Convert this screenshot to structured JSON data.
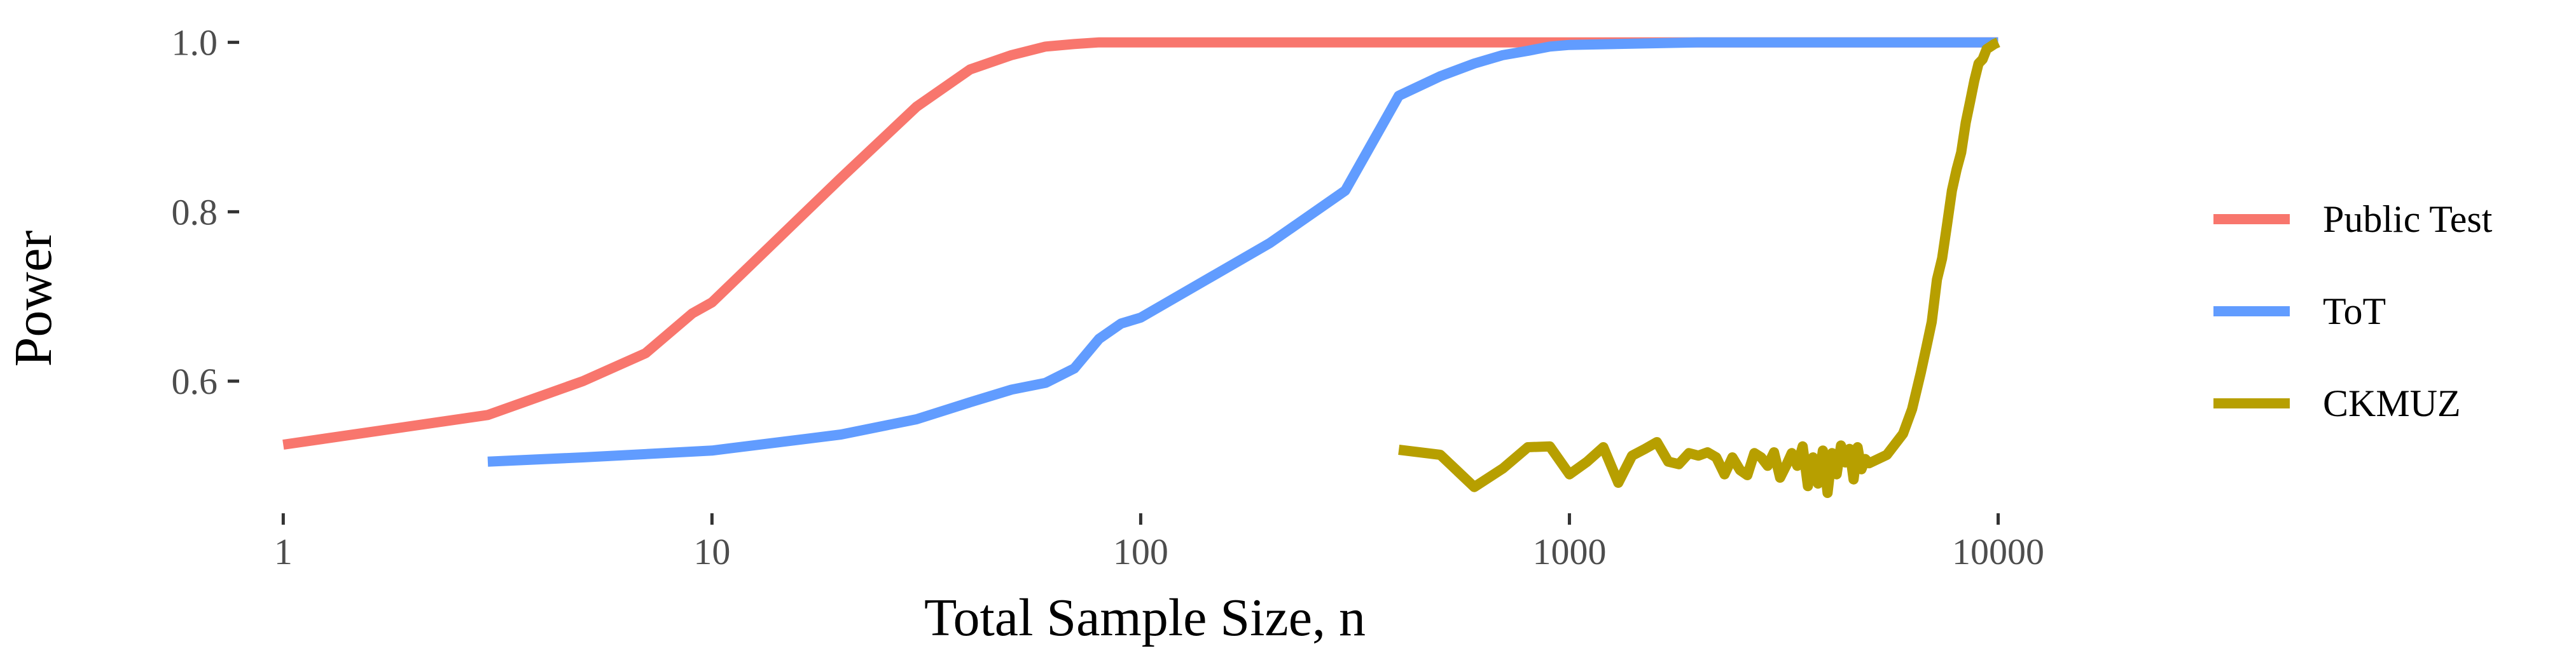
{
  "chart_data": {
    "type": "line",
    "title": "",
    "xlabel": "Total Sample Size, n",
    "ylabel": "Power",
    "x_scale": "log10",
    "xlim": [
      0.8,
      14000
    ],
    "ylim": [
      0.45,
      1.02
    ],
    "x_ticks": [
      1,
      10,
      100,
      1000,
      10000
    ],
    "x_tick_labels": [
      "1",
      "10",
      "100",
      "1000",
      "10000"
    ],
    "y_ticks": [
      0.6,
      0.8,
      1.0
    ],
    "y_tick_labels": [
      "0.6",
      "0.8",
      "1.0"
    ],
    "grid": false,
    "legend_position": "right",
    "series": [
      {
        "name": "Public Test",
        "color": "#F8766D",
        "x": [
          1,
          3,
          5,
          7,
          9,
          10,
          20,
          30,
          40,
          50,
          60,
          70,
          80,
          100,
          200,
          500,
          1000,
          2000,
          5000,
          10000
        ],
        "y": [
          0.525,
          0.56,
          0.6,
          0.633,
          0.68,
          0.693,
          0.84,
          0.924,
          0.968,
          0.985,
          0.995,
          0.998,
          1.0,
          1.0,
          1.0,
          1.0,
          1.0,
          1.0,
          1.0,
          1.0
        ]
      },
      {
        "name": "ToT",
        "color": "#619CFF",
        "x": [
          3,
          5,
          10,
          20,
          30,
          40,
          50,
          60,
          70,
          80,
          90,
          100,
          200,
          300,
          400,
          500,
          600,
          700,
          800,
          900,
          1000,
          2000,
          5000,
          10000
        ],
        "y": [
          0.505,
          0.51,
          0.518,
          0.537,
          0.555,
          0.575,
          0.59,
          0.598,
          0.615,
          0.65,
          0.668,
          0.675,
          0.763,
          0.825,
          0.937,
          0.96,
          0.975,
          0.985,
          0.99,
          0.995,
          0.997,
          1.0,
          1.0,
          1.0
        ]
      },
      {
        "name": "CKMUZ",
        "color": "#B79F00",
        "x": [
          400,
          500,
          600,
          700,
          800,
          900,
          1000,
          1100,
          1200,
          1300,
          1400,
          1500,
          1600,
          1700,
          1800,
          1900,
          2000,
          2100,
          2200,
          2300,
          2400,
          2500,
          2600,
          2700,
          2800,
          2900,
          3000,
          3100,
          3200,
          3300,
          3400,
          3500,
          3600,
          3700,
          3800,
          3900,
          4000,
          4100,
          4200,
          4300,
          4400,
          4500,
          4600,
          4700,
          4800,
          4900,
          5000,
          5500,
          6000,
          6300,
          6600,
          6800,
          7000,
          7200,
          7400,
          7600,
          7800,
          8000,
          8200,
          8400,
          8600,
          8800,
          9000,
          9200,
          9400,
          9600,
          9800,
          10000
        ],
        "y": [
          0.519,
          0.513,
          0.475,
          0.497,
          0.522,
          0.523,
          0.49,
          0.505,
          0.522,
          0.48,
          0.512,
          0.52,
          0.528,
          0.505,
          0.502,
          0.515,
          0.512,
          0.516,
          0.51,
          0.49,
          0.51,
          0.495,
          0.489,
          0.515,
          0.51,
          0.5,
          0.516,
          0.486,
          0.5,
          0.515,
          0.5,
          0.523,
          0.476,
          0.51,
          0.479,
          0.518,
          0.468,
          0.515,
          0.49,
          0.524,
          0.504,
          0.52,
          0.484,
          0.522,
          0.496,
          0.508,
          0.503,
          0.513,
          0.538,
          0.567,
          0.61,
          0.64,
          0.67,
          0.72,
          0.745,
          0.785,
          0.825,
          0.85,
          0.87,
          0.905,
          0.93,
          0.955,
          0.975,
          0.98,
          0.992,
          0.995,
          0.998,
          1.0
        ]
      }
    ]
  }
}
